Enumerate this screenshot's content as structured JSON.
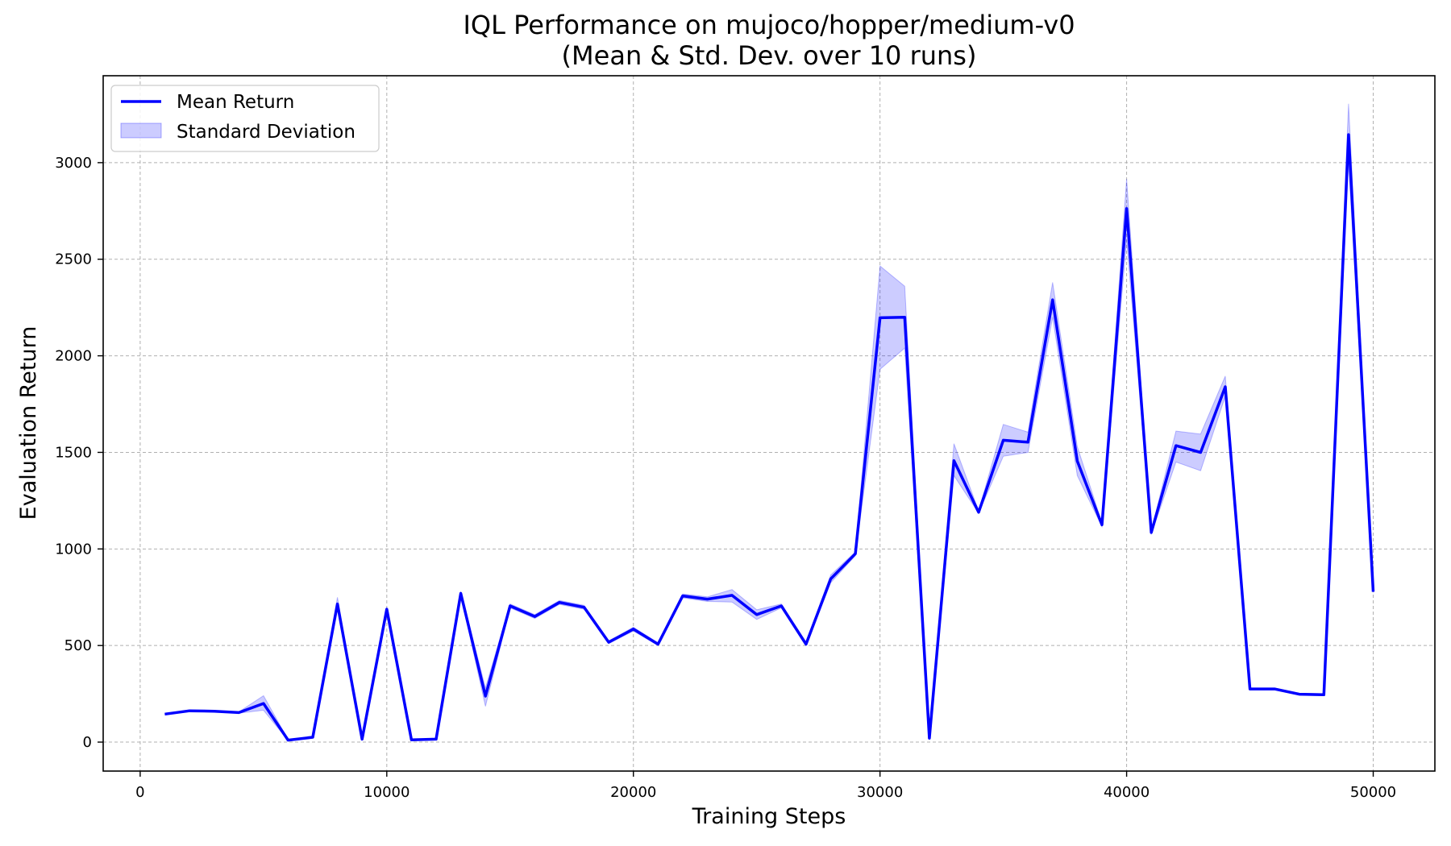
{
  "chart_data": {
    "type": "line",
    "title": [
      "IQL Performance on mujoco/hopper/medium-v0",
      "(Mean & Std. Dev. over 10 runs)"
    ],
    "xlabel": "Training Steps",
    "ylabel": "Evaluation Return",
    "xlim": [
      -1500,
      52500
    ],
    "ylim": [
      -150,
      3450
    ],
    "xticks": [
      0,
      10000,
      20000,
      30000,
      40000,
      50000
    ],
    "yticks": [
      0,
      500,
      1000,
      1500,
      2000,
      2500,
      3000
    ],
    "grid": true,
    "legend_position": "top-left",
    "colors": {
      "mean": "#0000ff",
      "band": "#0000ff",
      "grid": "#b0b0b0"
    },
    "series": [
      {
        "name": "Mean Return",
        "x": [
          1000,
          2000,
          3000,
          4000,
          5000,
          6000,
          7000,
          8000,
          9000,
          10000,
          11000,
          12000,
          13000,
          14000,
          15000,
          16000,
          17000,
          18000,
          19000,
          20000,
          21000,
          22000,
          23000,
          24000,
          25000,
          26000,
          27000,
          28000,
          29000,
          30000,
          31000,
          32000,
          33000,
          34000,
          35000,
          36000,
          37000,
          38000,
          39000,
          40000,
          41000,
          42000,
          43000,
          44000,
          45000,
          46000,
          47000,
          48000,
          49000,
          50000
        ],
        "values": [
          145,
          162,
          160,
          153,
          200,
          10,
          25,
          715,
          15,
          688,
          12,
          15,
          770,
          238,
          705,
          650,
          723,
          698,
          517,
          585,
          507,
          757,
          740,
          760,
          660,
          705,
          507,
          845,
          975,
          2197,
          2200,
          20,
          1457,
          1190,
          1563,
          1553,
          2290,
          1455,
          1125,
          2762,
          1085,
          1535,
          1500,
          1840,
          275,
          275,
          248,
          245,
          3145,
          778
        ]
      },
      {
        "name": "Standard Deviation",
        "lower": [
          142,
          158,
          157,
          150,
          165,
          8,
          22,
          700,
          12,
          678,
          10,
          12,
          760,
          185,
          695,
          640,
          713,
          688,
          510,
          575,
          500,
          747,
          728,
          725,
          635,
          695,
          500,
          825,
          965,
          1930,
          2040,
          15,
          1380,
          1185,
          1480,
          1500,
          2200,
          1380,
          1115,
          2600,
          1075,
          1450,
          1405,
          1790,
          270,
          270,
          243,
          240,
          3000,
          775
        ],
        "upper": [
          148,
          166,
          163,
          156,
          240,
          13,
          28,
          750,
          18,
          698,
          15,
          18,
          780,
          280,
          715,
          660,
          733,
          708,
          524,
          595,
          514,
          767,
          752,
          790,
          685,
          715,
          514,
          865,
          985,
          2465,
          2360,
          25,
          1545,
          1197,
          1645,
          1605,
          2380,
          1530,
          1135,
          2915,
          1095,
          1610,
          1595,
          1895,
          280,
          280,
          253,
          250,
          3305,
          781
        ]
      }
    ]
  }
}
